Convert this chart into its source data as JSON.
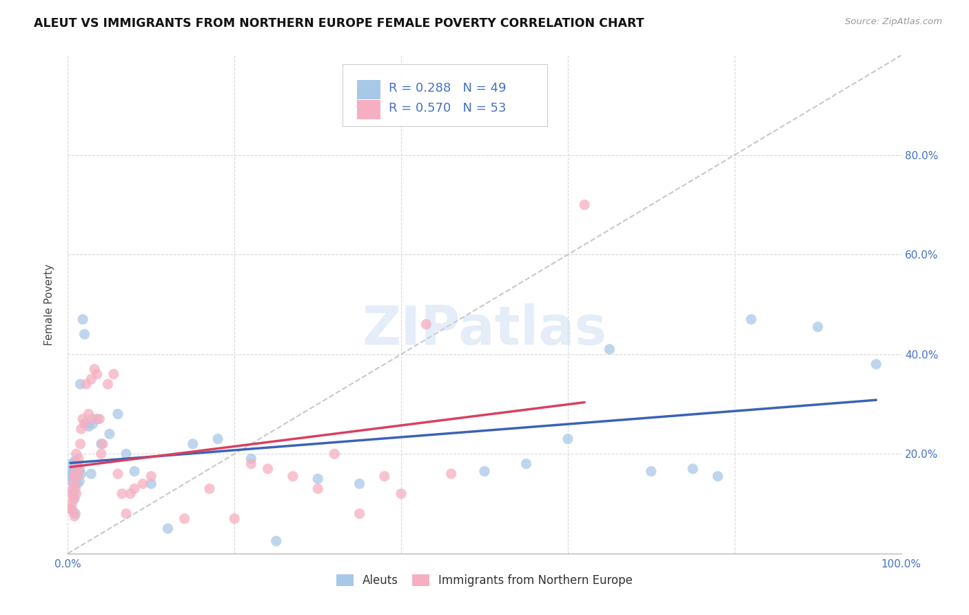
{
  "title": "ALEUT VS IMMIGRANTS FROM NORTHERN EUROPE FEMALE POVERTY CORRELATION CHART",
  "source": "Source: ZipAtlas.com",
  "ylabel": "Female Poverty",
  "xlim": [
    0,
    1.0
  ],
  "ylim": [
    0,
    1.0
  ],
  "xticks": [
    0.0,
    0.2,
    0.4,
    0.6,
    0.8,
    1.0
  ],
  "xticklabels": [
    "0.0%",
    "",
    "",
    "",
    "",
    "100.0%"
  ],
  "yticks": [
    0.0,
    0.2,
    0.4,
    0.6,
    0.8
  ],
  "yticklabels_right": [
    "",
    "20.0%",
    "40.0%",
    "60.0%",
    "80.0%"
  ],
  "background_color": "#ffffff",
  "grid_color": "#d8d8d8",
  "aleuts_color": "#a8c8e8",
  "immigrants_color": "#f5afc0",
  "aleuts_line_color": "#3a62b8",
  "immigrants_line_color": "#d84060",
  "diagonal_color": "#c8c8c8",
  "legend_R1": "0.288",
  "legend_N1": "49",
  "legend_R2": "0.570",
  "legend_N2": "53",
  "legend_label1": "Aleuts",
  "legend_label2": "Immigrants from Northern Europe",
  "aleuts_x": [
    0.003,
    0.004,
    0.005,
    0.005,
    0.006,
    0.006,
    0.007,
    0.007,
    0.008,
    0.008,
    0.009,
    0.01,
    0.01,
    0.011,
    0.012,
    0.013,
    0.014,
    0.015,
    0.016,
    0.018,
    0.02,
    0.022,
    0.025,
    0.028,
    0.03,
    0.035,
    0.04,
    0.05,
    0.06,
    0.07,
    0.08,
    0.1,
    0.12,
    0.15,
    0.18,
    0.22,
    0.25,
    0.3,
    0.35,
    0.5,
    0.55,
    0.6,
    0.65,
    0.7,
    0.75,
    0.78,
    0.82,
    0.9,
    0.97
  ],
  "aleuts_y": [
    0.155,
    0.09,
    0.145,
    0.18,
    0.16,
    0.17,
    0.12,
    0.165,
    0.11,
    0.185,
    0.08,
    0.155,
    0.16,
    0.14,
    0.16,
    0.165,
    0.145,
    0.34,
    0.16,
    0.47,
    0.44,
    0.26,
    0.255,
    0.16,
    0.26,
    0.27,
    0.22,
    0.24,
    0.28,
    0.2,
    0.165,
    0.14,
    0.05,
    0.22,
    0.23,
    0.19,
    0.025,
    0.15,
    0.14,
    0.165,
    0.18,
    0.23,
    0.41,
    0.165,
    0.17,
    0.155,
    0.47,
    0.455,
    0.38
  ],
  "immigrants_x": [
    0.003,
    0.004,
    0.005,
    0.006,
    0.006,
    0.007,
    0.007,
    0.008,
    0.008,
    0.009,
    0.009,
    0.01,
    0.01,
    0.011,
    0.012,
    0.013,
    0.014,
    0.015,
    0.016,
    0.018,
    0.02,
    0.022,
    0.025,
    0.028,
    0.03,
    0.032,
    0.035,
    0.038,
    0.04,
    0.042,
    0.048,
    0.055,
    0.06,
    0.065,
    0.07,
    0.075,
    0.08,
    0.09,
    0.1,
    0.14,
    0.17,
    0.2,
    0.22,
    0.24,
    0.27,
    0.3,
    0.32,
    0.35,
    0.38,
    0.4,
    0.43,
    0.46,
    0.62
  ],
  "immigrants_y": [
    0.09,
    0.12,
    0.1,
    0.085,
    0.13,
    0.11,
    0.14,
    0.075,
    0.155,
    0.13,
    0.16,
    0.12,
    0.2,
    0.18,
    0.155,
    0.19,
    0.17,
    0.22,
    0.25,
    0.27,
    0.26,
    0.34,
    0.28,
    0.35,
    0.27,
    0.37,
    0.36,
    0.27,
    0.2,
    0.22,
    0.34,
    0.36,
    0.16,
    0.12,
    0.08,
    0.12,
    0.13,
    0.14,
    0.155,
    0.07,
    0.13,
    0.07,
    0.18,
    0.17,
    0.155,
    0.13,
    0.2,
    0.08,
    0.155,
    0.12,
    0.46,
    0.16,
    0.7
  ]
}
